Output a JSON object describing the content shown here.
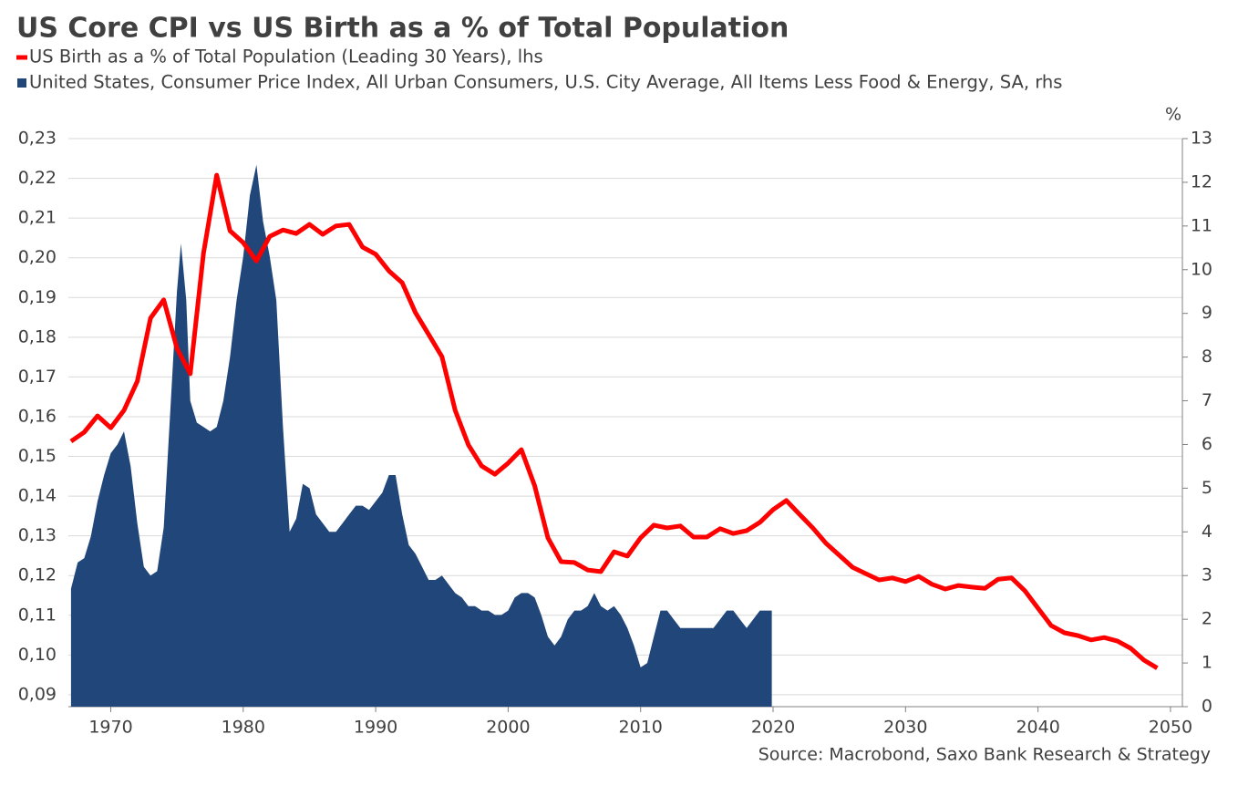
{
  "chart_data": {
    "type": "line-area",
    "title": "US Core CPI vs US Birth as a % of Total Population",
    "source": "Source: Macrobond, Saxo Bank Research & Strategy",
    "y2_unit": "%",
    "xlim": [
      1966.8,
      2050.9
    ],
    "xticks": [
      1970,
      1980,
      1990,
      2000,
      2010,
      2020,
      2030,
      2040,
      2050
    ],
    "ylim": [
      0.087,
      0.23
    ],
    "yticks": [
      {
        "value": 0.09,
        "label": "0,09"
      },
      {
        "value": 0.1,
        "label": "0,10"
      },
      {
        "value": 0.11,
        "label": "0,11"
      },
      {
        "value": 0.12,
        "label": "0,12"
      },
      {
        "value": 0.13,
        "label": "0,13"
      },
      {
        "value": 0.14,
        "label": "0,14"
      },
      {
        "value": 0.15,
        "label": "0,15"
      },
      {
        "value": 0.16,
        "label": "0,16"
      },
      {
        "value": 0.17,
        "label": "0,17"
      },
      {
        "value": 0.18,
        "label": "0,18"
      },
      {
        "value": 0.19,
        "label": "0,19"
      },
      {
        "value": 0.2,
        "label": "0,20"
      },
      {
        "value": 0.21,
        "label": "0,21"
      },
      {
        "value": 0.22,
        "label": "0,22"
      },
      {
        "value": 0.23,
        "label": "0,23"
      }
    ],
    "y2lim": [
      0,
      13
    ],
    "y2ticks": [
      0,
      1,
      2,
      3,
      4,
      5,
      6,
      7,
      8,
      9,
      10,
      11,
      12,
      13
    ],
    "grid": true,
    "series": [
      {
        "name": "US Birth as a % of Total Population (Leading 30 Years), lhs",
        "color": "#ff0000",
        "mark": "line",
        "axis": "y",
        "x": [
          1967,
          1968,
          1969,
          1970,
          1971,
          1972,
          1973,
          1974,
          1975,
          1976,
          1977,
          1978,
          1979,
          1980,
          1981,
          1982,
          1983,
          1984,
          1985,
          1986,
          1987,
          1988,
          1989,
          1990,
          1991,
          1992,
          1993,
          1994,
          1995,
          1996,
          1997,
          1998,
          1999,
          2000,
          2001,
          2002,
          2003,
          2004,
          2005,
          2006,
          2007,
          2008,
          2009,
          2010,
          2011,
          2012,
          2013,
          2014,
          2015,
          2016,
          2017,
          2018,
          2019,
          2020,
          2021,
          2022,
          2023,
          2024,
          2025,
          2026,
          2027,
          2028,
          2029,
          2030,
          2031,
          2032,
          2033,
          2034,
          2035,
          2036,
          2037,
          2038,
          2039,
          2040,
          2041,
          2042,
          2043,
          2044,
          2045,
          2046,
          2047,
          2048,
          2049
        ],
        "values": [
          0.1538,
          0.1561,
          0.1602,
          0.1572,
          0.1616,
          0.1689,
          0.1848,
          0.1894,
          0.1772,
          0.1708,
          0.2011,
          0.2208,
          0.2068,
          0.2038,
          0.1992,
          0.2054,
          0.207,
          0.2061,
          0.2084,
          0.2059,
          0.208,
          0.2084,
          0.2027,
          0.2009,
          0.1967,
          0.1937,
          0.1862,
          0.1807,
          0.1751,
          0.1616,
          0.1529,
          0.1476,
          0.1455,
          0.1483,
          0.1517,
          0.1426,
          0.1295,
          0.1235,
          0.1233,
          0.1214,
          0.121,
          0.126,
          0.1249,
          0.1295,
          0.1327,
          0.132,
          0.1325,
          0.1297,
          0.1297,
          0.1318,
          0.1306,
          0.1313,
          0.1334,
          0.1366,
          0.1389,
          0.1354,
          0.132,
          0.1281,
          0.1251,
          0.1221,
          0.1205,
          0.1189,
          0.1194,
          0.1185,
          0.1198,
          0.1178,
          0.1166,
          0.1175,
          0.1171,
          0.1168,
          0.1191,
          0.1194,
          0.1162,
          0.1118,
          0.1074,
          0.1056,
          0.1049,
          0.1038,
          0.1044,
          0.1035,
          0.1017,
          0.0987,
          0.0967
        ]
      },
      {
        "name": "United States, Consumer Price Index, All Urban Consumers, U.S. City Average, All Items Less Food & Energy, SA, rhs",
        "color": "#21467a",
        "mark": "area",
        "axis": "y2",
        "x": [
          1967,
          1967.5,
          1968,
          1968.5,
          1969,
          1969.5,
          1970,
          1970.5,
          1971,
          1971.5,
          1972,
          1972.5,
          1973,
          1973.5,
          1974,
          1974.5,
          1975,
          1975.3,
          1975.7,
          1976,
          1976.5,
          1977,
          1977.5,
          1978,
          1978.5,
          1979,
          1979.5,
          1980,
          1980.5,
          1981,
          1981.5,
          1982,
          1982.5,
          1983,
          1983.5,
          1984,
          1984.5,
          1985,
          1985.5,
          1986,
          1986.5,
          1987,
          1987.5,
          1988,
          1988.5,
          1989,
          1989.5,
          1990,
          1990.5,
          1991,
          1991.5,
          1992,
          1992.5,
          1993,
          1993.5,
          1994,
          1994.5,
          1995,
          1995.5,
          1996,
          1996.5,
          1997,
          1997.5,
          1998,
          1998.5,
          1999,
          1999.5,
          2000,
          2000.5,
          2001,
          2001.5,
          2002,
          2002.5,
          2003,
          2003.5,
          2004,
          2004.5,
          2005,
          2005.5,
          2006,
          2006.5,
          2007,
          2007.5,
          2008,
          2008.5,
          2009,
          2009.5,
          2010,
          2010.5,
          2011,
          2011.5,
          2012,
          2012.5,
          2013,
          2013.5,
          2014,
          2014.5,
          2015,
          2015.5,
          2016,
          2016.5,
          2017,
          2017.5,
          2018,
          2018.5,
          2019,
          2019.5,
          2019.9
        ],
        "values": [
          2.7,
          3.3,
          3.4,
          3.9,
          4.7,
          5.3,
          5.8,
          6.0,
          6.3,
          5.5,
          4.2,
          3.2,
          3.0,
          3.1,
          4.1,
          6.8,
          9.5,
          10.6,
          9.3,
          7.0,
          6.5,
          6.4,
          6.3,
          6.4,
          7.0,
          8.0,
          9.3,
          10.3,
          11.7,
          12.4,
          11.1,
          10.3,
          9.3,
          6.4,
          4.0,
          4.3,
          5.1,
          5.0,
          4.4,
          4.2,
          4.0,
          4.0,
          4.2,
          4.4,
          4.6,
          4.6,
          4.5,
          4.7,
          4.9,
          5.3,
          5.3,
          4.4,
          3.7,
          3.5,
          3.2,
          2.9,
          2.9,
          3.0,
          2.8,
          2.6,
          2.5,
          2.3,
          2.3,
          2.2,
          2.2,
          2.1,
          2.1,
          2.2,
          2.5,
          2.6,
          2.6,
          2.5,
          2.1,
          1.6,
          1.4,
          1.6,
          2.0,
          2.2,
          2.2,
          2.3,
          2.6,
          2.3,
          2.2,
          2.3,
          2.1,
          1.8,
          1.4,
          0.9,
          1.0,
          1.6,
          2.2,
          2.2,
          2.0,
          1.8,
          1.8,
          1.8,
          1.8,
          1.8,
          1.8,
          2.0,
          2.2,
          2.2,
          2.0,
          1.8,
          2.0,
          2.2,
          2.2,
          2.2
        ]
      }
    ]
  }
}
